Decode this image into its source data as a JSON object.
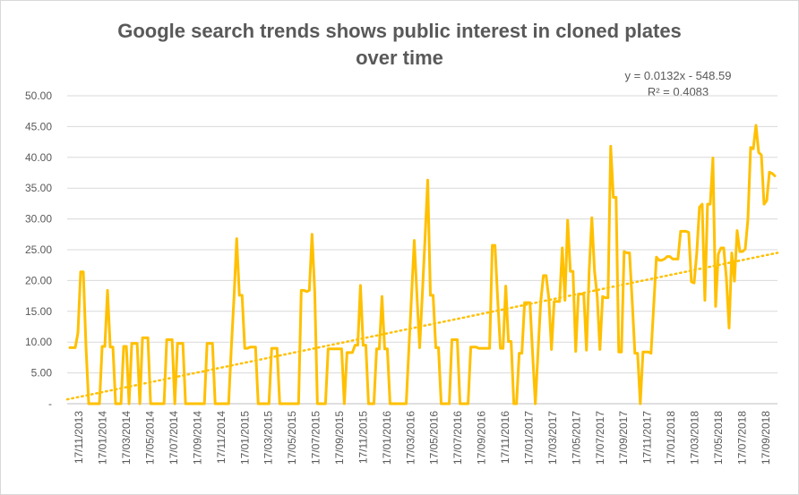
{
  "chart_data": {
    "type": "line",
    "title": "Google search trends shows public interest in cloned plates over time",
    "title_lines": [
      "Google search trends shows public interest in cloned plates",
      "over time"
    ],
    "xlabel": "",
    "ylabel": "",
    "ylim": [
      0,
      50
    ],
    "yticks": [
      "-",
      "5.00",
      "10.00",
      "15.00",
      "20.00",
      "25.00",
      "30.00",
      "35.00",
      "40.00",
      "45.00",
      "50.00"
    ],
    "xticks": [
      "17/11/2013",
      "17/01/2014",
      "17/03/2014",
      "17/05/2014",
      "17/07/2014",
      "17/09/2014",
      "17/11/2014",
      "17/01/2015",
      "17/03/2015",
      "17/05/2015",
      "17/07/2015",
      "17/09/2015",
      "17/11/2015",
      "17/01/2016",
      "17/03/2016",
      "17/05/2016",
      "17/07/2016",
      "17/09/2016",
      "17/11/2016",
      "17/01/2017",
      "17/03/2017",
      "17/05/2017",
      "17/07/2017",
      "17/09/2017",
      "17/11/2017",
      "17/01/2018",
      "17/03/2018",
      "17/05/2018",
      "17/07/2018",
      "17/09/2018"
    ],
    "grid": true,
    "series": [
      {
        "name": "",
        "color": "#FFC000",
        "values": [
          9.1,
          9.1,
          9.1,
          11.5,
          21.4,
          21.4,
          9.2,
          0,
          0,
          0,
          0,
          0,
          9.3,
          9.3,
          18.4,
          9.2,
          9.2,
          0,
          0,
          0,
          9.3,
          9.3,
          0,
          9.8,
          9.8,
          9.8,
          0,
          10.7,
          10.7,
          10.7,
          0,
          0,
          0,
          0,
          0,
          0,
          10.4,
          10.4,
          10.4,
          0,
          9.8,
          9.8,
          9.8,
          0,
          0,
          0,
          0,
          0,
          0,
          0,
          0,
          9.8,
          9.8,
          9.8,
          0,
          0,
          0,
          0,
          0,
          0,
          9.0,
          17.2,
          26.8,
          17.6,
          17.6,
          9.0,
          9.0,
          9.2,
          9.2,
          9.2,
          0,
          0,
          0,
          0,
          0,
          9.0,
          9.0,
          9.0,
          0,
          0,
          0,
          0,
          0,
          0,
          0,
          0,
          18.4,
          18.4,
          18.2,
          18.4,
          27.5,
          18.3,
          0,
          0,
          0,
          0,
          8.9,
          8.9,
          8.9,
          8.9,
          8.9,
          8.9,
          0,
          8.3,
          8.3,
          8.3,
          9.5,
          9.5,
          19.2,
          9.5,
          9.5,
          0,
          0,
          0,
          8.9,
          8.9,
          17.4,
          8.9,
          8.9,
          0,
          0,
          0,
          0,
          0,
          0,
          0,
          8.9,
          17.6,
          26.5,
          17.6,
          9.1,
          17.8,
          26.8,
          36.3,
          17.6,
          17.6,
          9.1,
          9.1,
          0,
          0,
          0,
          0,
          10.4,
          10.4,
          10.4,
          0,
          0,
          0,
          0,
          9.2,
          9.2,
          9.2,
          9.0,
          9.0,
          9.0,
          9.0,
          9.0,
          25.7,
          25.7,
          17.0,
          9.0,
          9.0,
          19.1,
          10.1,
          10.1,
          0,
          0,
          8.2,
          8.2,
          16.4,
          16.4,
          16.4,
          8.0,
          0,
          8.4,
          16.6,
          20.8,
          20.8,
          17.2,
          8.8,
          16.6,
          16.6,
          16.6,
          25.3,
          16.8,
          29.8,
          21.5,
          21.5,
          8.5,
          17.8,
          17.8,
          17.8,
          8.7,
          21.5,
          30.2,
          21.5,
          17.4,
          8.8,
          17.4,
          17.2,
          17.2,
          41.8,
          33.5,
          33.5,
          8.4,
          8.4,
          24.7,
          24.5,
          24.5,
          16.6,
          8.2,
          8.2,
          0,
          8.4,
          8.4,
          8.4,
          8.2,
          16.0,
          23.8,
          23.3,
          23.3,
          23.5,
          23.9,
          23.9,
          23.5,
          23.5,
          23.5,
          28.0,
          28.0,
          28.0,
          27.8,
          19.8,
          19.6,
          24.5,
          31.9,
          32.4,
          16.8,
          32.4,
          32.4,
          39.9,
          15.8,
          24.3,
          25.3,
          25.3,
          20.4,
          12.3,
          24.5,
          19.9,
          28.1,
          24.7,
          24.7,
          25.1,
          29.9,
          41.6,
          41.4,
          45.2,
          40.8,
          40.4,
          32.4,
          33.0,
          37.6,
          37.4,
          37.0
        ],
        "trendline": {
          "type": "linear",
          "style": "dotted",
          "start": 0.7,
          "end": 24.5,
          "equation": "y = 0.0132x - 548.59",
          "r2": "R² = 0.4083"
        }
      }
    ]
  }
}
